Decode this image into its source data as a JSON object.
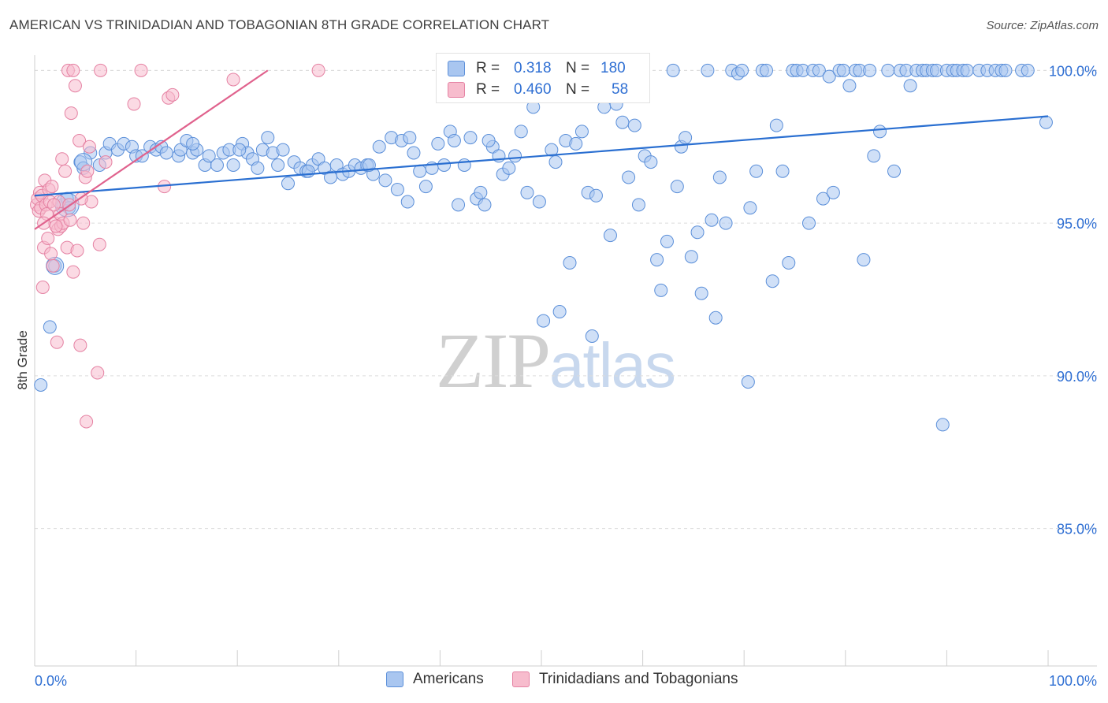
{
  "header": {
    "title": "AMERICAN VS TRINIDADIAN AND TOBAGONIAN 8TH GRADE CORRELATION CHART",
    "source": "Source: ZipAtlas.com"
  },
  "legend": {
    "rows": [
      {
        "r_label": "R =",
        "r_value": "0.318",
        "n_label": "N =",
        "n_value": "180"
      },
      {
        "r_label": "R =",
        "r_value": "0.460",
        "n_label": "N =",
        "n_value": "58"
      }
    ]
  },
  "bottom_legend": {
    "items": [
      {
        "label": "Americans"
      },
      {
        "label": "Trinidadians and Tobagonians"
      }
    ]
  },
  "watermark": {
    "zip": "ZIP",
    "atlas": "atlas"
  },
  "colors": {
    "blue_fill": "#a9c6f0",
    "blue_stroke": "#5b8fd9",
    "blue_line": "#2a6fd1",
    "pink_fill": "#f7bccd",
    "pink_stroke": "#e582a3",
    "pink_line": "#e0628d",
    "tick_text": "#2f6fd3"
  },
  "chart_data": {
    "type": "scatter",
    "title": "AMERICAN VS TRINIDADIAN AND TOBAGONIAN 8TH GRADE CORRELATION CHART",
    "xlabel": "",
    "ylabel": "8th Grade",
    "xlim": [
      0,
      100
    ],
    "ylim": [
      80.5,
      100.5
    ],
    "x_tick_labels": [
      "0.0%",
      "100.0%"
    ],
    "y_ticks": [
      85,
      90,
      95,
      100
    ],
    "y_tick_labels": [
      "85.0%",
      "90.0%",
      "95.0%",
      "100.0%"
    ],
    "grid": true,
    "legend_position": "top-center",
    "series": [
      {
        "name": "Americans",
        "r": 0.318,
        "n": 180,
        "trend": {
          "x": [
            0,
            100
          ],
          "y": [
            95.9,
            98.5
          ]
        },
        "points": [
          [
            0.6,
            89.7
          ],
          [
            1.5,
            91.6
          ],
          [
            2.0,
            93.6
          ],
          [
            2.8,
            95.6
          ],
          [
            3.2,
            95.8
          ],
          [
            3.4,
            95.5
          ],
          [
            4.5,
            97.0
          ],
          [
            4.8,
            96.8
          ],
          [
            5.5,
            97.3
          ],
          [
            6.4,
            96.9
          ],
          [
            7.0,
            97.3
          ],
          [
            7.4,
            97.6
          ],
          [
            8.2,
            97.4
          ],
          [
            8.8,
            97.6
          ],
          [
            9.6,
            97.5
          ],
          [
            10.0,
            97.2
          ],
          [
            10.6,
            97.2
          ],
          [
            11.4,
            97.5
          ],
          [
            12.0,
            97.4
          ],
          [
            12.5,
            97.5
          ],
          [
            13.0,
            97.3
          ],
          [
            14.2,
            97.2
          ],
          [
            14.4,
            97.4
          ],
          [
            15.0,
            97.7
          ],
          [
            15.6,
            97.3
          ],
          [
            16.0,
            97.4
          ],
          [
            16.8,
            96.9
          ],
          [
            17.2,
            97.2
          ],
          [
            18.0,
            96.9
          ],
          [
            18.6,
            97.3
          ],
          [
            19.2,
            97.4
          ],
          [
            19.6,
            96.9
          ],
          [
            20.5,
            97.6
          ],
          [
            21.0,
            97.3
          ],
          [
            21.5,
            97.1
          ],
          [
            22.0,
            96.8
          ],
          [
            22.5,
            97.4
          ],
          [
            23.0,
            97.8
          ],
          [
            23.5,
            97.3
          ],
          [
            24.0,
            96.9
          ],
          [
            24.5,
            97.4
          ],
          [
            25.0,
            96.3
          ],
          [
            25.6,
            97.0
          ],
          [
            26.2,
            96.8
          ],
          [
            26.8,
            96.7
          ],
          [
            27.4,
            96.9
          ],
          [
            28.0,
            97.1
          ],
          [
            28.6,
            96.8
          ],
          [
            29.2,
            96.5
          ],
          [
            29.8,
            96.9
          ],
          [
            30.4,
            96.6
          ],
          [
            31.0,
            96.7
          ],
          [
            31.6,
            96.9
          ],
          [
            32.2,
            96.8
          ],
          [
            32.8,
            96.9
          ],
          [
            33.4,
            96.6
          ],
          [
            34.0,
            97.5
          ],
          [
            34.6,
            96.4
          ],
          [
            35.2,
            97.8
          ],
          [
            35.8,
            96.1
          ],
          [
            36.2,
            97.7
          ],
          [
            36.8,
            95.7
          ],
          [
            37.4,
            97.3
          ],
          [
            38.0,
            96.7
          ],
          [
            38.6,
            96.2
          ],
          [
            39.2,
            96.8
          ],
          [
            39.8,
            97.6
          ],
          [
            40.4,
            96.9
          ],
          [
            41.0,
            98.0
          ],
          [
            41.4,
            97.7
          ],
          [
            41.8,
            95.6
          ],
          [
            42.4,
            96.9
          ],
          [
            43.0,
            97.8
          ],
          [
            43.6,
            95.8
          ],
          [
            44.0,
            96.0
          ],
          [
            44.4,
            95.6
          ],
          [
            45.2,
            97.5
          ],
          [
            45.8,
            97.2
          ],
          [
            46.2,
            96.6
          ],
          [
            46.8,
            96.8
          ],
          [
            47.4,
            97.2
          ],
          [
            48.0,
            98.0
          ],
          [
            48.6,
            96.0
          ],
          [
            49.2,
            98.8
          ],
          [
            49.8,
            95.7
          ],
          [
            50.2,
            91.8
          ],
          [
            51.0,
            97.4
          ],
          [
            51.4,
            97.0
          ],
          [
            51.8,
            92.1
          ],
          [
            52.4,
            97.7
          ],
          [
            52.8,
            93.7
          ],
          [
            53.4,
            97.6
          ],
          [
            54.0,
            98.0
          ],
          [
            54.6,
            96.0
          ],
          [
            55.0,
            91.3
          ],
          [
            55.4,
            95.9
          ],
          [
            56.2,
            98.8
          ],
          [
            56.8,
            94.6
          ],
          [
            57.4,
            98.9
          ],
          [
            58.0,
            98.3
          ],
          [
            58.6,
            96.5
          ],
          [
            59.2,
            98.2
          ],
          [
            59.6,
            95.6
          ],
          [
            60.2,
            97.2
          ],
          [
            60.8,
            97.0
          ],
          [
            61.4,
            93.8
          ],
          [
            61.8,
            92.8
          ],
          [
            62.4,
            94.4
          ],
          [
            63.0,
            100.0
          ],
          [
            63.4,
            96.2
          ],
          [
            63.8,
            97.5
          ],
          [
            64.2,
            97.8
          ],
          [
            64.8,
            93.9
          ],
          [
            65.4,
            94.7
          ],
          [
            65.8,
            92.7
          ],
          [
            66.4,
            100.0
          ],
          [
            66.8,
            95.1
          ],
          [
            67.2,
            91.9
          ],
          [
            67.6,
            96.5
          ],
          [
            68.2,
            95.0
          ],
          [
            68.8,
            100.0
          ],
          [
            69.4,
            99.9
          ],
          [
            69.8,
            100.0
          ],
          [
            70.4,
            89.8
          ],
          [
            70.6,
            95.5
          ],
          [
            71.2,
            96.7
          ],
          [
            71.8,
            100.0
          ],
          [
            72.2,
            100.0
          ],
          [
            72.8,
            93.1
          ],
          [
            73.2,
            98.2
          ],
          [
            73.8,
            96.7
          ],
          [
            74.4,
            93.7
          ],
          [
            74.8,
            100.0
          ],
          [
            75.2,
            100.0
          ],
          [
            75.8,
            100.0
          ],
          [
            76.4,
            95.0
          ],
          [
            76.8,
            100.0
          ],
          [
            77.4,
            100.0
          ],
          [
            77.8,
            95.8
          ],
          [
            78.4,
            99.8
          ],
          [
            78.8,
            96.0
          ],
          [
            79.4,
            100.0
          ],
          [
            79.8,
            100.0
          ],
          [
            80.4,
            99.5
          ],
          [
            81.0,
            100.0
          ],
          [
            81.4,
            100.0
          ],
          [
            81.8,
            93.8
          ],
          [
            82.4,
            100.0
          ],
          [
            82.8,
            97.2
          ],
          [
            83.4,
            98.0
          ],
          [
            84.2,
            100.0
          ],
          [
            84.8,
            96.7
          ],
          [
            85.4,
            100.0
          ],
          [
            86.0,
            100.0
          ],
          [
            86.4,
            99.5
          ],
          [
            87.0,
            100.0
          ],
          [
            87.6,
            100.0
          ],
          [
            88.0,
            100.0
          ],
          [
            88.6,
            100.0
          ],
          [
            89.0,
            100.0
          ],
          [
            89.6,
            88.4
          ],
          [
            90.0,
            100.0
          ],
          [
            90.6,
            100.0
          ],
          [
            91.0,
            100.0
          ],
          [
            91.6,
            100.0
          ],
          [
            92.0,
            100.0
          ],
          [
            93.2,
            100.0
          ],
          [
            94.0,
            100.0
          ],
          [
            94.8,
            100.0
          ],
          [
            95.4,
            100.0
          ],
          [
            95.8,
            100.0
          ],
          [
            97.4,
            100.0
          ],
          [
            98.0,
            100.0
          ],
          [
            99.8,
            98.3
          ],
          [
            15.6,
            97.6
          ],
          [
            20.2,
            97.4
          ],
          [
            27.0,
            96.7
          ],
          [
            33.0,
            96.9
          ],
          [
            37.0,
            97.8
          ],
          [
            44.8,
            97.7
          ]
        ]
      },
      {
        "name": "Trinidadians and Tobagonians",
        "r": 0.46,
        "n": 58,
        "trend": {
          "x": [
            0,
            23
          ],
          "y": [
            94.8,
            100.0
          ]
        },
        "points": [
          [
            0.2,
            95.6
          ],
          [
            0.3,
            95.8
          ],
          [
            0.4,
            95.4
          ],
          [
            0.5,
            96.0
          ],
          [
            0.6,
            95.5
          ],
          [
            0.7,
            95.9
          ],
          [
            0.8,
            92.9
          ],
          [
            0.9,
            94.2
          ],
          [
            1.0,
            96.4
          ],
          [
            1.1,
            95.6
          ],
          [
            1.2,
            95.3
          ],
          [
            1.3,
            94.5
          ],
          [
            1.4,
            96.1
          ],
          [
            1.5,
            95.7
          ],
          [
            1.6,
            94.0
          ],
          [
            1.7,
            96.2
          ],
          [
            1.8,
            93.6
          ],
          [
            2.0,
            95.0
          ],
          [
            2.2,
            91.1
          ],
          [
            2.3,
            94.8
          ],
          [
            2.4,
            95.7
          ],
          [
            2.5,
            95.3
          ],
          [
            2.6,
            94.9
          ],
          [
            2.7,
            97.1
          ],
          [
            2.8,
            95.0
          ],
          [
            3.0,
            96.7
          ],
          [
            3.2,
            94.2
          ],
          [
            3.3,
            100.0
          ],
          [
            3.4,
            95.6
          ],
          [
            3.6,
            98.6
          ],
          [
            3.8,
            93.4
          ],
          [
            4.0,
            99.5
          ],
          [
            4.2,
            94.1
          ],
          [
            4.4,
            97.7
          ],
          [
            4.5,
            91.0
          ],
          [
            4.8,
            95.0
          ],
          [
            5.0,
            96.5
          ],
          [
            5.1,
            88.5
          ],
          [
            5.2,
            96.7
          ],
          [
            5.4,
            97.5
          ],
          [
            5.6,
            95.7
          ],
          [
            6.2,
            90.1
          ],
          [
            6.4,
            94.3
          ],
          [
            7.0,
            97.0
          ],
          [
            3.8,
            100.0
          ],
          [
            6.5,
            100.0
          ],
          [
            9.8,
            98.9
          ],
          [
            10.5,
            100.0
          ],
          [
            12.8,
            96.2
          ],
          [
            13.2,
            99.1
          ],
          [
            13.6,
            99.2
          ],
          [
            19.6,
            99.7
          ],
          [
            28.0,
            100.0
          ],
          [
            1.9,
            95.6
          ],
          [
            2.1,
            94.9
          ],
          [
            0.9,
            95.0
          ],
          [
            3.5,
            95.1
          ],
          [
            4.6,
            95.8
          ]
        ]
      }
    ]
  }
}
